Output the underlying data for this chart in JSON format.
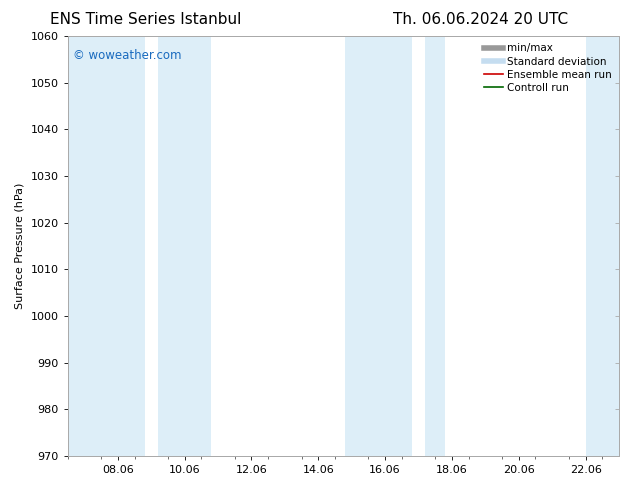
{
  "title_left": "ENS Time Series Istanbul",
  "title_right": "Th. 06.06.2024 20 UTC",
  "ylabel": "Surface Pressure (hPa)",
  "ylim": [
    970,
    1060
  ],
  "yticks": [
    970,
    980,
    990,
    1000,
    1010,
    1020,
    1030,
    1040,
    1050,
    1060
  ],
  "xlim_start": 6.5,
  "xlim_end": 23.0,
  "xtick_labels": [
    "08.06",
    "10.06",
    "12.06",
    "14.06",
    "16.06",
    "18.06",
    "20.06",
    "22.06"
  ],
  "xtick_positions": [
    8.0,
    10.0,
    12.0,
    14.0,
    16.0,
    18.0,
    20.0,
    22.0
  ],
  "shaded_bands": [
    {
      "x_start": 6.5,
      "x_end": 8.8,
      "color": "#ddeef8"
    },
    {
      "x_start": 9.2,
      "x_end": 10.8,
      "color": "#ddeef8"
    },
    {
      "x_start": 14.8,
      "x_end": 16.8,
      "color": "#ddeef8"
    },
    {
      "x_start": 17.2,
      "x_end": 17.8,
      "color": "#ddeef8"
    },
    {
      "x_start": 22.0,
      "x_end": 23.0,
      "color": "#ddeef8"
    }
  ],
  "watermark_text": "© woweather.com",
  "watermark_color": "#1a6bbf",
  "legend_items": [
    {
      "label": "min/max",
      "color": "#999999",
      "lw": 4
    },
    {
      "label": "Standard deviation",
      "color": "#c5ddf0",
      "lw": 4
    },
    {
      "label": "Ensemble mean run",
      "color": "#cc0000",
      "lw": 1.2
    },
    {
      "label": "Controll run",
      "color": "#006600",
      "lw": 1.2
    }
  ],
  "bg_color": "#ffffff",
  "plot_bg_color": "#ffffff",
  "grid_color": "#dddddd",
  "font_color": "#000000",
  "title_fontsize": 11,
  "axis_fontsize": 8,
  "ylabel_fontsize": 8,
  "legend_fontsize": 7.5
}
